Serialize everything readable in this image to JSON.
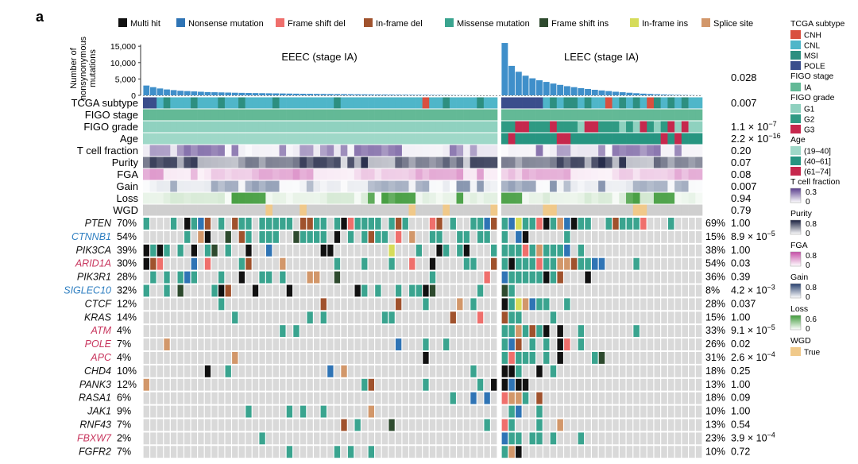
{
  "panel_label": "a",
  "mutation_legend": [
    {
      "label": "Multi hit",
      "color": "#111111"
    },
    {
      "label": "Nonsense mutation",
      "color": "#2f74b5"
    },
    {
      "label": "Frame shift del",
      "color": "#ef6f6c"
    },
    {
      "label": "In-frame del",
      "color": "#a0522d"
    },
    {
      "label": "Missense mutation",
      "color": "#3aa48f"
    },
    {
      "label": "Frame shift ins",
      "color": "#2e4a2e"
    },
    {
      "label": "In-frame ins",
      "color": "#d6dc5a"
    },
    {
      "label": "Splice site",
      "color": "#d2976a"
    }
  ],
  "chart_data": {
    "type": "heatmap",
    "title": "",
    "groups": [
      {
        "name": "EEEC (stage IA)",
        "n_samples": 52
      },
      {
        "name": "LEEC (stage IA)",
        "n_samples": 29
      }
    ],
    "tmb_axis": {
      "ylabel_lines": [
        "Number of",
        "nonsynonymous",
        "mutations"
      ],
      "ticks": [
        "15,000",
        "10,000",
        "5,000",
        "0"
      ],
      "tick_values": [
        15000,
        10000,
        5000,
        0
      ],
      "ylim": [
        0,
        16500
      ],
      "eeec_values": [
        3000,
        2500,
        2100,
        1800,
        1600,
        1400,
        1300,
        1200,
        1100,
        1000,
        950,
        900,
        850,
        800,
        760,
        720,
        690,
        660,
        630,
        600,
        570,
        540,
        510,
        480,
        460,
        440,
        420,
        400,
        380,
        360,
        340,
        320,
        300,
        280,
        260,
        240,
        220,
        200,
        185,
        170,
        155,
        140,
        125,
        110,
        95,
        80,
        65,
        50,
        40,
        30,
        20,
        10
      ],
      "leec_values": [
        16000,
        9000,
        7200,
        6000,
        5200,
        4600,
        4100,
        3600,
        3200,
        2800,
        2500,
        2200,
        1950,
        1700,
        1500,
        1300,
        1100,
        950,
        800,
        650,
        520,
        420,
        330,
        260,
        200,
        150,
        100,
        60,
        30
      ],
      "p_value": "0.028"
    },
    "annotation_tracks": [
      {
        "name": "TCGA subtype",
        "p": "0.007"
      },
      {
        "name": "FIGO stage",
        "p": ""
      },
      {
        "name": "FIGO grade",
        "p": "1.1 × 10",
        "p_exp": "−7"
      },
      {
        "name": "Age",
        "p": "2.2 × 10",
        "p_exp": "−16"
      },
      {
        "name": "T cell fraction",
        "p": "0.20"
      },
      {
        "name": "Purity",
        "p": "0.07"
      },
      {
        "name": "FGA",
        "p": "0.08"
      },
      {
        "name": "Gain",
        "p": "0.007"
      },
      {
        "name": "Loss",
        "p": "0.94"
      },
      {
        "name": "WGD",
        "p": "0.79"
      }
    ],
    "genes": [
      {
        "name": "PTEN",
        "eeec_pct": "70%",
        "leec_pct": "69%",
        "p": "1.00",
        "p_exp": "",
        "color": "#111111",
        "e_freq": 0.7,
        "l_freq": 0.69
      },
      {
        "name": "CTNNB1",
        "eeec_pct": "54%",
        "leec_pct": "15%",
        "p": "8.9 × 10",
        "p_exp": "−5",
        "color": "#2f7fc1",
        "e_freq": 0.54,
        "l_freq": 0.15
      },
      {
        "name": "PIK3CA",
        "eeec_pct": "39%",
        "leec_pct": "38%",
        "p": "1.00",
        "p_exp": "",
        "color": "#111111",
        "e_freq": 0.39,
        "l_freq": 0.38
      },
      {
        "name": "ARID1A",
        "eeec_pct": "30%",
        "leec_pct": "54%",
        "p": "0.03",
        "p_exp": "",
        "color": "#c8365e",
        "e_freq": 0.3,
        "l_freq": 0.54
      },
      {
        "name": "PIK3R1",
        "eeec_pct": "28%",
        "leec_pct": "36%",
        "p": "0.39",
        "p_exp": "",
        "color": "#111111",
        "e_freq": 0.28,
        "l_freq": 0.36
      },
      {
        "name": "SIGLEC10",
        "eeec_pct": "32%",
        "leec_pct": "8%",
        "p": "4.2 × 10",
        "p_exp": "−3",
        "color": "#2f7fc1",
        "e_freq": 0.32,
        "l_freq": 0.08
      },
      {
        "name": "CTCF",
        "eeec_pct": "12%",
        "leec_pct": "28%",
        "p": "0.037",
        "p_exp": "",
        "color": "#111111",
        "e_freq": 0.12,
        "l_freq": 0.28
      },
      {
        "name": "KRAS",
        "eeec_pct": "14%",
        "leec_pct": "15%",
        "p": "1.00",
        "p_exp": "",
        "color": "#111111",
        "e_freq": 0.14,
        "l_freq": 0.15
      },
      {
        "name": "ATM",
        "eeec_pct": "4%",
        "leec_pct": "33%",
        "p": "9.1 × 10",
        "p_exp": "−5",
        "color": "#c8365e",
        "e_freq": 0.04,
        "l_freq": 0.33
      },
      {
        "name": "POLE",
        "eeec_pct": "7%",
        "leec_pct": "26%",
        "p": "0.02",
        "p_exp": "",
        "color": "#c8365e",
        "e_freq": 0.07,
        "l_freq": 0.26
      },
      {
        "name": "APC",
        "eeec_pct": "4%",
        "leec_pct": "31%",
        "p": "2.6 × 10",
        "p_exp": "−4",
        "color": "#c8365e",
        "e_freq": 0.04,
        "l_freq": 0.31
      },
      {
        "name": "CHD4",
        "eeec_pct": "10%",
        "leec_pct": "18%",
        "p": "0.25",
        "p_exp": "",
        "color": "#111111",
        "e_freq": 0.1,
        "l_freq": 0.18
      },
      {
        "name": "PANK3",
        "eeec_pct": "12%",
        "leec_pct": "13%",
        "p": "1.00",
        "p_exp": "",
        "color": "#111111",
        "e_freq": 0.12,
        "l_freq": 0.13
      },
      {
        "name": "RASA1",
        "eeec_pct": "6%",
        "leec_pct": "18%",
        "p": "0.09",
        "p_exp": "",
        "color": "#111111",
        "e_freq": 0.06,
        "l_freq": 0.18
      },
      {
        "name": "JAK1",
        "eeec_pct": "9%",
        "leec_pct": "10%",
        "p": "1.00",
        "p_exp": "",
        "color": "#111111",
        "e_freq": 0.09,
        "l_freq": 0.1
      },
      {
        "name": "RNF43",
        "eeec_pct": "7%",
        "leec_pct": "13%",
        "p": "0.54",
        "p_exp": "",
        "color": "#111111",
        "e_freq": 0.07,
        "l_freq": 0.13
      },
      {
        "name": "FBXW7",
        "eeec_pct": "2%",
        "leec_pct": "23%",
        "p": "3.9 × 10",
        "p_exp": "−4",
        "color": "#c8365e",
        "e_freq": 0.02,
        "l_freq": 0.23
      },
      {
        "name": "FGFR2",
        "eeec_pct": "7%",
        "leec_pct": "10%",
        "p": "0.72",
        "p_exp": "",
        "color": "#111111",
        "e_freq": 0.07,
        "l_freq": 0.1
      }
    ]
  },
  "side_legend": [
    {
      "title": "TCGA subtype",
      "kind": "categorical",
      "items": [
        {
          "label": "CNH",
          "color": "#d9503f"
        },
        {
          "label": "CNL",
          "color": "#4fb6c9"
        },
        {
          "label": "MSI",
          "color": "#2d8f80"
        },
        {
          "label": "POLE",
          "color": "#3a4e8c"
        }
      ]
    },
    {
      "title": "FIGO stage",
      "kind": "categorical",
      "items": [
        {
          "label": "IA",
          "color": "#63b996"
        }
      ]
    },
    {
      "title": "FIGO grade",
      "kind": "categorical",
      "items": [
        {
          "label": "G1",
          "color": "#8fd1bf"
        },
        {
          "label": "G2",
          "color": "#2f9a83"
        },
        {
          "label": "G3",
          "color": "#c6284d"
        }
      ]
    },
    {
      "title": "Age",
      "kind": "categorical",
      "items": [
        {
          "label": "(19–40]",
          "color": "#9fd8c8"
        },
        {
          "label": "(40–61]",
          "color": "#279581"
        },
        {
          "label": "(61–74]",
          "color": "#c6284d"
        }
      ]
    },
    {
      "title": "T cell fraction",
      "kind": "gradient",
      "max": "0.3",
      "min": "0",
      "color_hi": "#5b3f8e",
      "color_lo": "#ffffff"
    },
    {
      "title": "Purity",
      "kind": "gradient",
      "max": "0.8",
      "min": "0",
      "color_hi": "#1a2040",
      "color_lo": "#ffffff"
    },
    {
      "title": "FGA",
      "kind": "gradient",
      "max": "0.8",
      "min": "0",
      "color_hi": "#c64ea7",
      "color_lo": "#ffffff"
    },
    {
      "title": "Gain",
      "kind": "gradient",
      "max": "0.8",
      "min": "0",
      "color_hi": "#27406e",
      "color_lo": "#ffffff"
    },
    {
      "title": "Loss",
      "kind": "gradient",
      "max": "0.6",
      "min": "0",
      "color_hi": "#3f9a3a",
      "color_lo": "#ffffff"
    },
    {
      "title": "WGD",
      "kind": "categorical",
      "items": [
        {
          "label": "True",
          "color": "#f0c98a"
        }
      ]
    }
  ],
  "colors": {
    "bar": "#3f8fca",
    "empty_cell": "#d9d9d9",
    "wgd_false": "#cfcfcf",
    "stage": "#63b996",
    "grade_g1": "#8fd1bf",
    "age_mid": "#9fd8c8"
  }
}
